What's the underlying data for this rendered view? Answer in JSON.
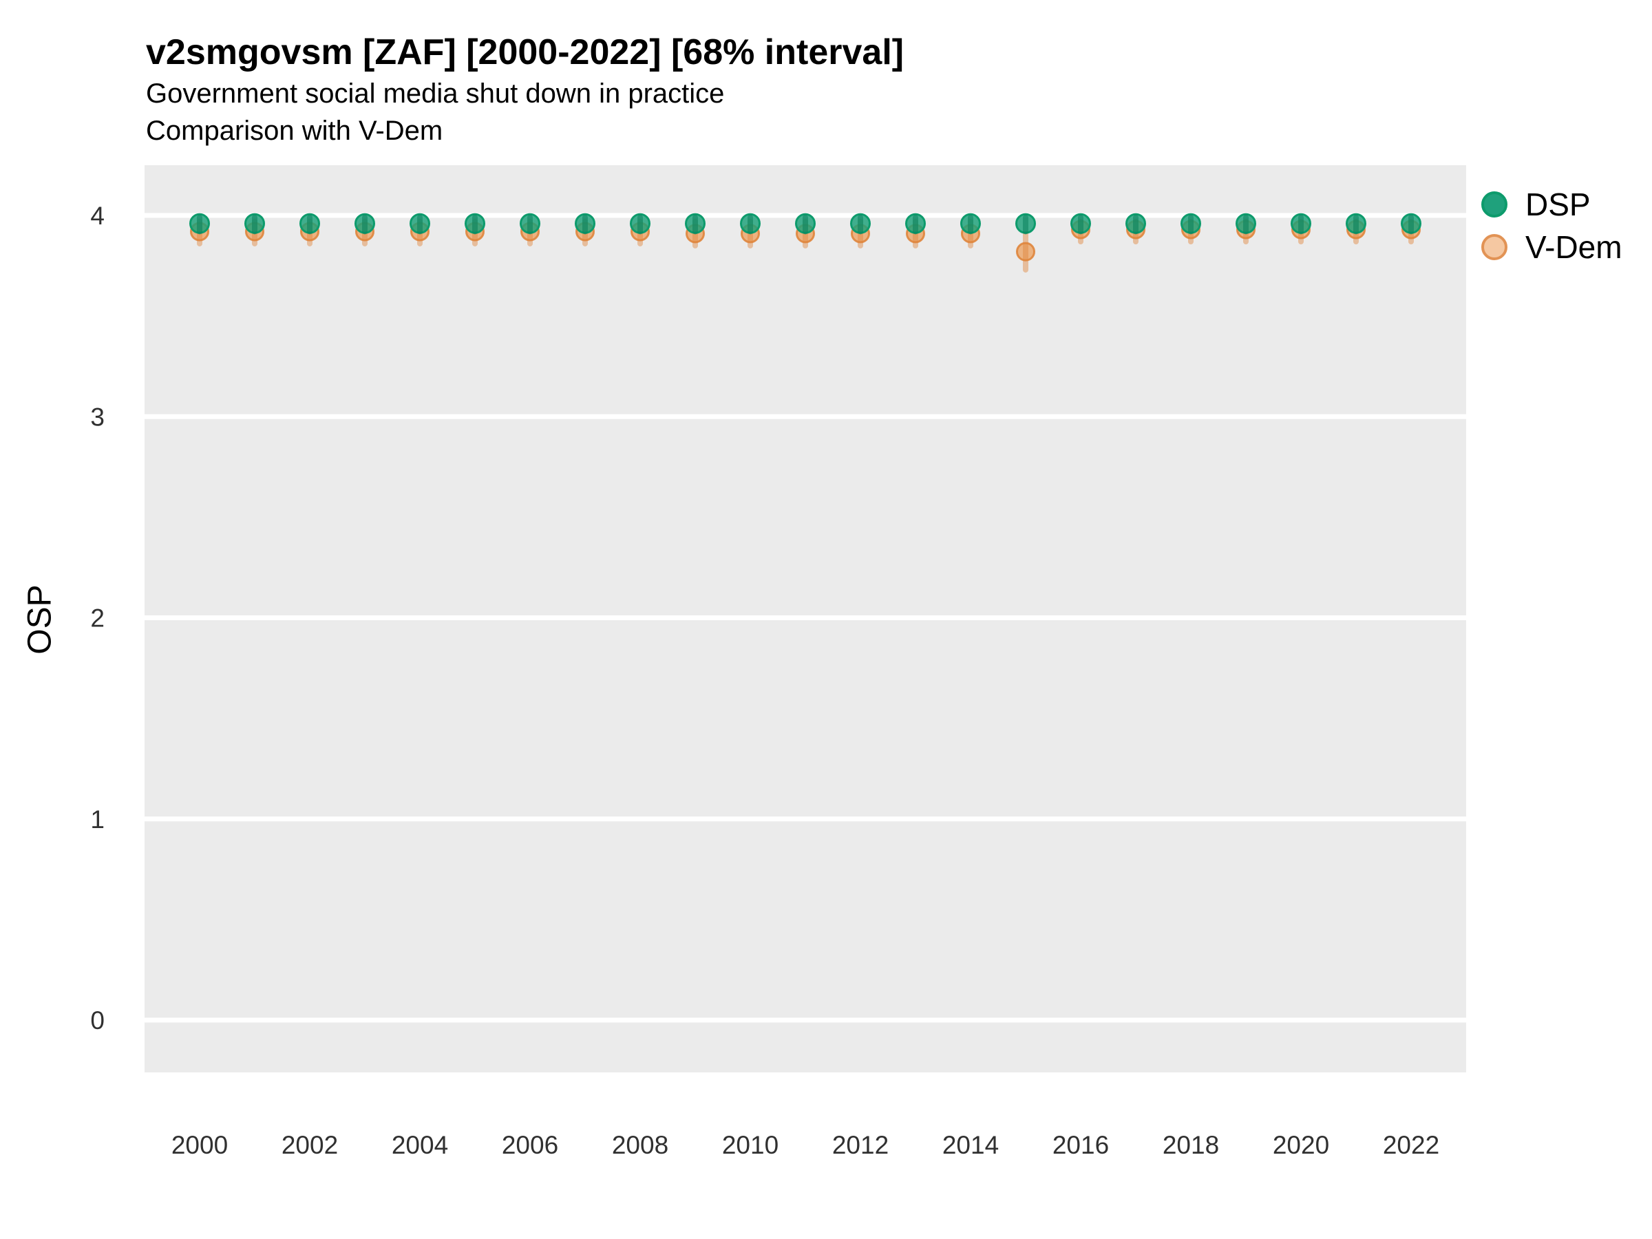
{
  "header": {
    "title": "v2smgovsm [ZAF] [2000-2022] [68% interval]",
    "subtitle_line1": "Government social media shut down in practice",
    "subtitle_line2": "Comparison with V-Dem"
  },
  "axes": {
    "y_label": "OSP",
    "y_tick_labels": [
      "0",
      "1",
      "2",
      "3",
      "4"
    ],
    "x_tick_labels": [
      "2000",
      "2002",
      "2004",
      "2006",
      "2008",
      "2010",
      "2012",
      "2014",
      "2016",
      "2018",
      "2020",
      "2022"
    ]
  },
  "legend": {
    "items": [
      {
        "label": "DSP",
        "swatch_fill": "#1fa17c",
        "swatch_stroke": "#0d9b6c"
      },
      {
        "label": "V-Dem",
        "swatch_fill": "#f5c8a2",
        "swatch_stroke": "#e29355"
      }
    ]
  },
  "colors": {
    "panel_background": "#ebebeb",
    "gridline": "#ffffff",
    "tick_text": "#303030",
    "title_text": "#000000"
  },
  "chart_data": {
    "type": "scatter",
    "title": "v2smgovsm [ZAF] [2000-2022] [68% interval]",
    "subtitle": "Government social media shut down in practice — Comparison with V-Dem",
    "xlabel": "",
    "ylabel": "OSP",
    "x": [
      2000,
      2001,
      2002,
      2003,
      2004,
      2005,
      2006,
      2007,
      2008,
      2009,
      2010,
      2011,
      2012,
      2013,
      2014,
      2015,
      2016,
      2017,
      2018,
      2019,
      2020,
      2021,
      2022
    ],
    "xticks": [
      2000,
      2002,
      2004,
      2006,
      2008,
      2010,
      2012,
      2014,
      2016,
      2018,
      2020,
      2022
    ],
    "yticks": [
      0,
      1,
      2,
      3,
      4
    ],
    "xlim": [
      1999,
      2023
    ],
    "ylim": [
      -0.26,
      4.25
    ],
    "interval": "68%",
    "grid": "major horizontal white lines on gray panel",
    "legend_position": "right-top",
    "series": [
      {
        "name": "DSP",
        "stroke": "#0d9b6c",
        "fill": "rgba(26,160,120,0.82)",
        "interval_color": "rgba(10,130,92,0.55)",
        "marker_radius": 13.5,
        "values": [
          3.96,
          3.96,
          3.96,
          3.96,
          3.96,
          3.96,
          3.96,
          3.96,
          3.96,
          3.96,
          3.96,
          3.96,
          3.96,
          3.96,
          3.96,
          3.96,
          3.96,
          3.96,
          3.96,
          3.96,
          3.96,
          3.96,
          3.96
        ],
        "interval_low": [
          3.92,
          3.92,
          3.92,
          3.92,
          3.92,
          3.92,
          3.92,
          3.92,
          3.92,
          3.92,
          3.92,
          3.92,
          3.92,
          3.92,
          3.92,
          3.92,
          3.92,
          3.92,
          3.92,
          3.92,
          3.92,
          3.92,
          3.92
        ],
        "interval_high": [
          3.99,
          3.99,
          3.99,
          3.99,
          3.99,
          3.99,
          3.99,
          3.99,
          3.99,
          3.99,
          3.99,
          3.99,
          3.99,
          3.99,
          3.99,
          3.99,
          3.99,
          3.99,
          3.99,
          3.99,
          3.99,
          3.99,
          3.99
        ]
      },
      {
        "name": "V-Dem",
        "stroke": "rgba(223,133,60,0.9)",
        "fill": "rgba(236,156,88,0.72)",
        "interval_color": "rgba(223,133,60,0.45)",
        "marker_radius": 12.5,
        "values": [
          3.92,
          3.92,
          3.92,
          3.92,
          3.92,
          3.92,
          3.92,
          3.92,
          3.92,
          3.91,
          3.91,
          3.91,
          3.91,
          3.91,
          3.91,
          3.82,
          3.93,
          3.93,
          3.93,
          3.93,
          3.93,
          3.93,
          3.93
        ],
        "interval_low": [
          3.86,
          3.86,
          3.86,
          3.86,
          3.86,
          3.86,
          3.86,
          3.86,
          3.86,
          3.85,
          3.85,
          3.85,
          3.85,
          3.85,
          3.85,
          3.73,
          3.87,
          3.87,
          3.87,
          3.87,
          3.87,
          3.87,
          3.87
        ],
        "interval_high": [
          3.97,
          3.97,
          3.97,
          3.97,
          3.97,
          3.97,
          3.97,
          3.97,
          3.97,
          3.97,
          3.97,
          3.97,
          3.97,
          3.97,
          3.97,
          3.91,
          3.97,
          3.97,
          3.97,
          3.97,
          3.97,
          3.97,
          3.97
        ]
      }
    ]
  }
}
